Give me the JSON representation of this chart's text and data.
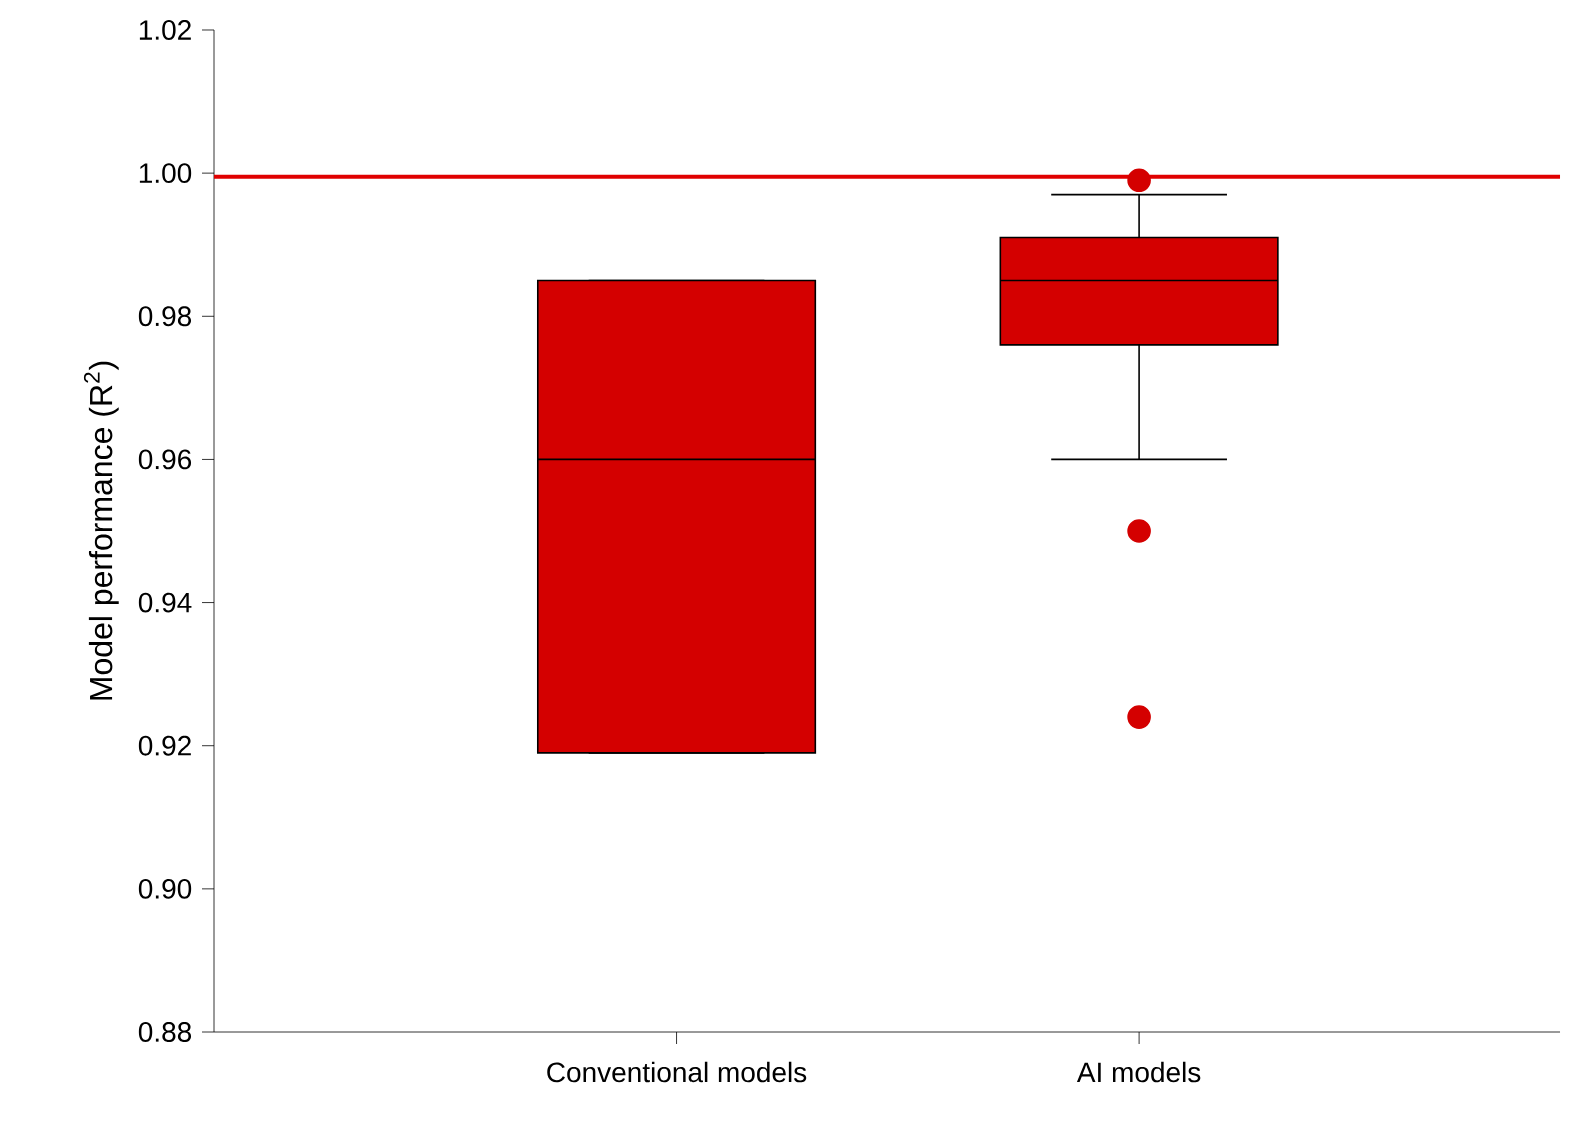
{
  "chart_data": {
    "type": "box",
    "ylabel": "Model performance (R$^{2}$)",
    "categories": [
      "Conventional models",
      "AI models"
    ],
    "series": [
      {
        "color": "#d40000",
        "boxes": [
          {
            "low": 0.919,
            "q1": 0.919,
            "median": 0.96,
            "q3": 0.985,
            "high": 0.985
          },
          {
            "low": 0.96,
            "q1": 0.976,
            "median": 0.985,
            "q3": 0.991,
            "high": 0.997,
            "outliers": [
              0.999,
              0.95,
              0.924
            ]
          }
        ]
      }
    ],
    "ylim": [
      0.88,
      1.02
    ],
    "yticks": [
      {
        "value": 0.88,
        "label": "0.88"
      },
      {
        "value": 0.9,
        "label": "0.90"
      },
      {
        "value": 0.92,
        "label": "0.92"
      },
      {
        "value": 0.94,
        "label": "0.94"
      },
      {
        "value": 0.96,
        "label": "0.96"
      },
      {
        "value": 0.98,
        "label": "0.98"
      },
      {
        "value": 1.0,
        "label": "1.00"
      },
      {
        "value": 1.02,
        "label": "1.02"
      }
    ],
    "ref_lines": [
      {
        "axis": "y",
        "value": 0.9995,
        "color": "#e00000"
      }
    ]
  }
}
